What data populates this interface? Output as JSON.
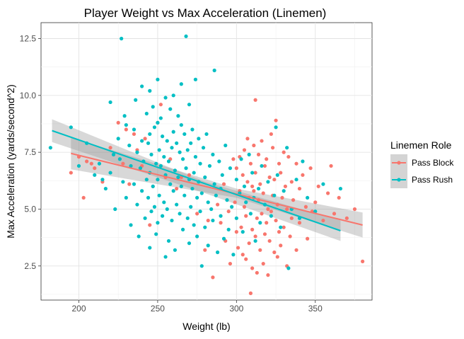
{
  "chart_data": {
    "type": "scatter",
    "title": "Player Weight vs Max Acceleration (Linemen)",
    "xlabel": "Weight (lb)",
    "ylabel": "Max Acceleration (yards/second^2)",
    "xlim": [
      176,
      386
    ],
    "ylim": [
      1.0,
      13.2
    ],
    "x_ticks": [
      200,
      250,
      300,
      350
    ],
    "x_tick_labels": [
      "200",
      "250",
      "300",
      "350"
    ],
    "y_ticks": [
      2.5,
      5.0,
      7.5,
      10.0,
      12.5
    ],
    "y_tick_labels": [
      "2.5",
      "5.0",
      "7.5",
      "10.0",
      "12.5"
    ],
    "grid": true,
    "legend": {
      "title": "Linemen Role",
      "placement": "right",
      "entries": [
        "Pass Block",
        "Pass Rush"
      ]
    },
    "series": [
      {
        "name": "Pass Block",
        "color": "#F8766D",
        "trend": {
          "x": [
            195,
            380
          ],
          "y": [
            7.45,
            4.3
          ]
        },
        "band": {
          "x": [
            195,
            300,
            380
          ],
          "lower": [
            6.75,
            5.5,
            3.75
          ],
          "upper": [
            8.15,
            5.9,
            4.85
          ]
        },
        "points": [
          [
            195,
            6.6
          ],
          [
            200,
            7.3
          ],
          [
            203,
            5.5
          ],
          [
            205,
            7.1
          ],
          [
            208,
            7.0
          ],
          [
            210,
            6.8
          ],
          [
            215,
            6.2
          ],
          [
            220,
            7.7
          ],
          [
            222,
            7.4
          ],
          [
            225,
            8.8
          ],
          [
            228,
            7.0
          ],
          [
            230,
            8.5
          ],
          [
            232,
            6.1
          ],
          [
            235,
            8.3
          ],
          [
            237,
            7.6
          ],
          [
            240,
            6.9
          ],
          [
            242,
            8.1
          ],
          [
            245,
            4.3
          ],
          [
            247,
            6.0
          ],
          [
            250,
            8.8
          ],
          [
            252,
            9.6
          ],
          [
            255,
            6.4
          ],
          [
            258,
            7.2
          ],
          [
            262,
            5.9
          ],
          [
            265,
            6.4
          ],
          [
            270,
            6.5
          ],
          [
            275,
            4.8
          ],
          [
            280,
            3.2
          ],
          [
            282,
            4.5
          ],
          [
            285,
            2.0
          ],
          [
            288,
            5.2
          ],
          [
            290,
            4.4
          ],
          [
            292,
            6.1
          ],
          [
            293,
            3.6
          ],
          [
            295,
            4.9
          ],
          [
            296,
            2.6
          ],
          [
            298,
            7.2
          ],
          [
            299,
            5.3
          ],
          [
            300,
            4.0
          ],
          [
            300,
            6.8
          ],
          [
            301,
            3.3
          ],
          [
            302,
            5.8
          ],
          [
            302,
            7.3
          ],
          [
            303,
            4.2
          ],
          [
            304,
            6.5
          ],
          [
            304,
            3.0
          ],
          [
            305,
            5.1
          ],
          [
            305,
            7.6
          ],
          [
            306,
            2.8
          ],
          [
            306,
            4.7
          ],
          [
            307,
            6.2
          ],
          [
            307,
            8.1
          ],
          [
            308,
            3.5
          ],
          [
            308,
            5.5
          ],
          [
            309,
            7.0
          ],
          [
            309,
            1.3
          ],
          [
            310,
            4.1
          ],
          [
            310,
            6.0
          ],
          [
            310,
            2.4
          ],
          [
            311,
            5.8
          ],
          [
            311,
            7.8
          ],
          [
            312,
            3.8
          ],
          [
            312,
            6.6
          ],
          [
            312,
            9.8
          ],
          [
            313,
            4.6
          ],
          [
            313,
            2.2
          ],
          [
            314,
            5.4
          ],
          [
            314,
            7.4
          ],
          [
            315,
            3.2
          ],
          [
            315,
            6.1
          ],
          [
            316,
            4.8
          ],
          [
            316,
            8.0
          ],
          [
            317,
            2.6
          ],
          [
            317,
            5.7
          ],
          [
            318,
            6.9
          ],
          [
            318,
            3.9
          ],
          [
            319,
            4.4
          ],
          [
            319,
            7.2
          ],
          [
            320,
            5.0
          ],
          [
            320,
            2.1
          ],
          [
            321,
            6.4
          ],
          [
            321,
            3.6
          ],
          [
            322,
            8.3
          ],
          [
            322,
            4.9
          ],
          [
            323,
            5.6
          ],
          [
            323,
            7.7
          ],
          [
            324,
            3.1
          ],
          [
            324,
            6.3
          ],
          [
            325,
            4.5
          ],
          [
            325,
            8.9
          ],
          [
            326,
            5.2
          ],
          [
            326,
            2.9
          ],
          [
            327,
            7.0
          ],
          [
            327,
            4.0
          ],
          [
            328,
            6.6
          ],
          [
            328,
            3.4
          ],
          [
            329,
            5.5
          ],
          [
            330,
            7.5
          ],
          [
            330,
            4.2
          ],
          [
            331,
            6.0
          ],
          [
            332,
            2.5
          ],
          [
            332,
            5.0
          ],
          [
            333,
            7.3
          ],
          [
            334,
            3.8
          ],
          [
            335,
            6.2
          ],
          [
            335,
            4.6
          ],
          [
            336,
            5.4
          ],
          [
            338,
            7.0
          ],
          [
            338,
            3.2
          ],
          [
            340,
            5.9
          ],
          [
            340,
            4.4
          ],
          [
            342,
            6.5
          ],
          [
            344,
            5.1
          ],
          [
            345,
            3.7
          ],
          [
            347,
            6.8
          ],
          [
            348,
            4.9
          ],
          [
            350,
            5.3
          ],
          [
            352,
            6.0
          ],
          [
            355,
            4.5
          ],
          [
            358,
            5.7
          ],
          [
            360,
            6.9
          ],
          [
            362,
            4.8
          ],
          [
            365,
            5.5
          ],
          [
            370,
            4.6
          ],
          [
            375,
            5.0
          ],
          [
            380,
            2.7
          ]
        ]
      },
      {
        "name": "Pass Rush",
        "color": "#00BFC4",
        "trend": {
          "x": [
            183,
            366
          ],
          "y": [
            8.45,
            4.05
          ]
        },
        "band": {
          "x": [
            183,
            280,
            366
          ],
          "lower": [
            7.95,
            5.7,
            3.6
          ],
          "upper": [
            8.95,
            6.2,
            4.5
          ]
        },
        "points": [
          [
            182,
            7.7
          ],
          [
            195,
            8.6
          ],
          [
            200,
            6.9
          ],
          [
            205,
            7.9
          ],
          [
            210,
            6.5
          ],
          [
            213,
            7.0
          ],
          [
            215,
            6.3
          ],
          [
            217,
            5.9
          ],
          [
            220,
            9.7
          ],
          [
            220,
            6.6
          ],
          [
            222,
            7.4
          ],
          [
            223,
            5.0
          ],
          [
            225,
            8.1
          ],
          [
            226,
            7.2
          ],
          [
            227,
            12.5
          ],
          [
            228,
            6.2
          ],
          [
            229,
            9.1
          ],
          [
            230,
            8.7
          ],
          [
            230,
            5.5
          ],
          [
            232,
            7.8
          ],
          [
            233,
            6.9
          ],
          [
            233,
            4.3
          ],
          [
            235,
            8.5
          ],
          [
            235,
            6.1
          ],
          [
            236,
            9.8
          ],
          [
            237,
            7.5
          ],
          [
            237,
            5.2
          ],
          [
            238,
            3.8
          ],
          [
            239,
            6.8
          ],
          [
            240,
            10.4
          ],
          [
            240,
            8.0
          ],
          [
            240,
            5.8
          ],
          [
            241,
            7.1
          ],
          [
            242,
            4.6
          ],
          [
            243,
            6.3
          ],
          [
            243,
            9.2
          ],
          [
            244,
            7.9
          ],
          [
            244,
            5.5
          ],
          [
            245,
            10.2
          ],
          [
            245,
            8.3
          ],
          [
            245,
            6.6
          ],
          [
            245,
            3.3
          ],
          [
            246,
            7.4
          ],
          [
            246,
            4.9
          ],
          [
            247,
            9.5
          ],
          [
            247,
            6.0
          ],
          [
            248,
            8.6
          ],
          [
            248,
            5.1
          ],
          [
            249,
            7.0
          ],
          [
            249,
            3.9
          ],
          [
            250,
            10.7
          ],
          [
            250,
            8.8
          ],
          [
            250,
            6.3
          ],
          [
            250,
            4.4
          ],
          [
            251,
            7.6
          ],
          [
            251,
            5.6
          ],
          [
            252,
            9.0
          ],
          [
            252,
            6.9
          ],
          [
            253,
            8.2
          ],
          [
            253,
            4.7
          ],
          [
            254,
            7.3
          ],
          [
            254,
            5.3
          ],
          [
            255,
            9.9
          ],
          [
            255,
            6.5
          ],
          [
            255,
            2.9
          ],
          [
            256,
            8.0
          ],
          [
            256,
            5.0
          ],
          [
            257,
            7.1
          ],
          [
            257,
            3.6
          ],
          [
            258,
            9.4
          ],
          [
            258,
            6.1
          ],
          [
            259,
            7.7
          ],
          [
            259,
            4.5
          ],
          [
            260,
            10.0
          ],
          [
            260,
            8.4
          ],
          [
            260,
            5.8
          ],
          [
            261,
            6.7
          ],
          [
            261,
            3.2
          ],
          [
            262,
            7.9
          ],
          [
            262,
            5.2
          ],
          [
            263,
            9.1
          ],
          [
            263,
            6.4
          ],
          [
            264,
            7.5
          ],
          [
            264,
            4.8
          ],
          [
            265,
            10.5
          ],
          [
            265,
            8.7
          ],
          [
            265,
            6.0
          ],
          [
            266,
            7.2
          ],
          [
            266,
            4.1
          ],
          [
            267,
            8.3
          ],
          [
            267,
            5.6
          ],
          [
            268,
            12.6
          ],
          [
            268,
            6.8
          ],
          [
            269,
            7.6
          ],
          [
            269,
            4.6
          ],
          [
            270,
            9.6
          ],
          [
            270,
            6.3
          ],
          [
            270,
            3.5
          ],
          [
            271,
            7.9
          ],
          [
            271,
            5.1
          ],
          [
            272,
            8.5
          ],
          [
            272,
            5.9
          ],
          [
            273,
            6.6
          ],
          [
            273,
            4.3
          ],
          [
            274,
            10.7
          ],
          [
            274,
            7.3
          ],
          [
            275,
            5.5
          ],
          [
            275,
            3.8
          ],
          [
            276,
            8.1
          ],
          [
            276,
            6.2
          ],
          [
            277,
            7.0
          ],
          [
            277,
            4.9
          ],
          [
            278,
            5.7
          ],
          [
            278,
            2.5
          ],
          [
            279,
            7.7
          ],
          [
            280,
            6.4
          ],
          [
            280,
            4.2
          ],
          [
            281,
            8.3
          ],
          [
            282,
            5.3
          ],
          [
            282,
            3.4
          ],
          [
            283,
            6.9
          ],
          [
            284,
            5.0
          ],
          [
            285,
            7.4
          ],
          [
            285,
            4.5
          ],
          [
            286,
            11.1
          ],
          [
            286,
            6.1
          ],
          [
            287,
            5.6
          ],
          [
            288,
            3.1
          ],
          [
            289,
            7.1
          ],
          [
            290,
            5.9
          ],
          [
            290,
            4.7
          ],
          [
            291,
            6.5
          ],
          [
            292,
            3.7
          ],
          [
            293,
            7.8
          ],
          [
            294,
            5.4
          ],
          [
            295,
            4.1
          ],
          [
            296,
            6.8
          ],
          [
            297,
            5.1
          ],
          [
            298,
            3.0
          ],
          [
            300,
            6.3
          ],
          [
            300,
            4.6
          ],
          [
            302,
            5.7
          ],
          [
            303,
            7.2
          ],
          [
            304,
            4.0
          ],
          [
            305,
            6.0
          ],
          [
            306,
            5.3
          ],
          [
            308,
            7.4
          ],
          [
            309,
            4.8
          ],
          [
            310,
            6.6
          ],
          [
            311,
            5.5
          ],
          [
            312,
            3.6
          ],
          [
            314,
            5.9
          ],
          [
            315,
            4.4
          ],
          [
            316,
            6.9
          ],
          [
            318,
            5.2
          ],
          [
            320,
            6.2
          ],
          [
            322,
            4.7
          ],
          [
            324,
            5.6
          ],
          [
            325,
            8.6
          ],
          [
            326,
            6.5
          ],
          [
            328,
            4.2
          ],
          [
            330,
            5.8
          ],
          [
            332,
            7.7
          ],
          [
            333,
            2.4
          ],
          [
            335,
            5.0
          ],
          [
            338,
            6.3
          ],
          [
            340,
            4.6
          ],
          [
            342,
            7.1
          ],
          [
            345,
            5.5
          ],
          [
            350,
            4.9
          ],
          [
            355,
            6.1
          ],
          [
            366,
            5.9
          ]
        ]
      }
    ]
  }
}
